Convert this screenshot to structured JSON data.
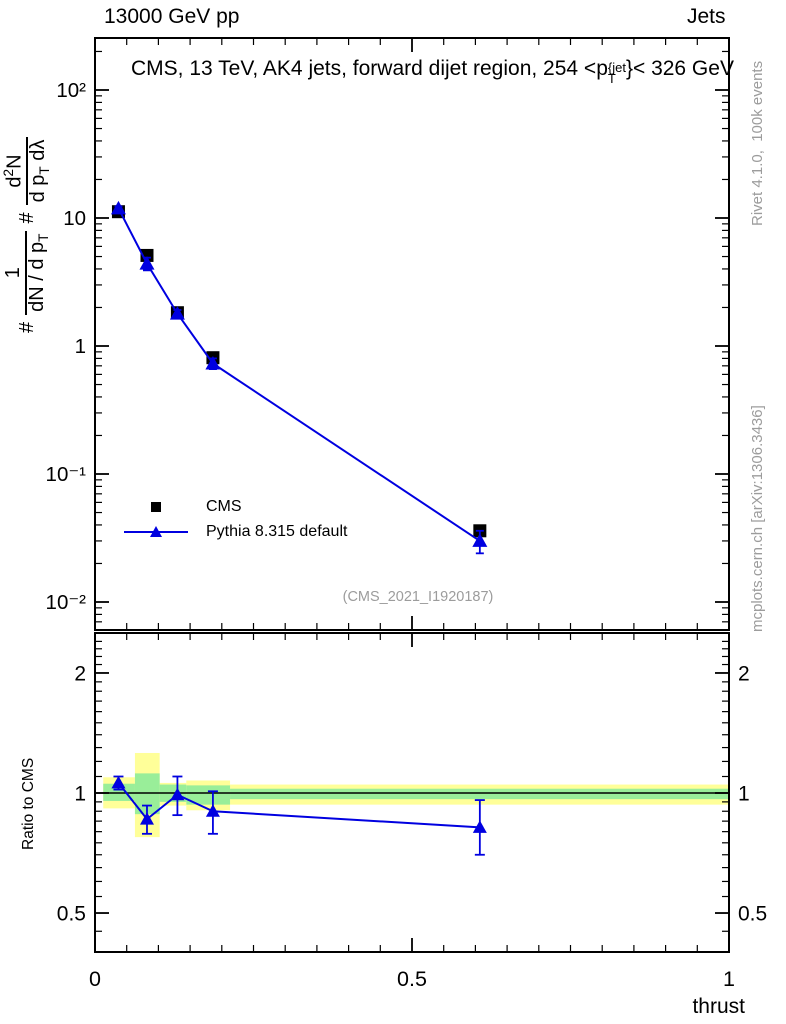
{
  "header": {
    "beam": "13000 GeV pp",
    "analysis_group": "Jets"
  },
  "title": {
    "pre": "CMS, 13 TeV, AK4 jets, forward dijet region, 254 <p",
    "sup": "{jet",
    "sub": "T",
    "post": "}< 326 GeV",
    "plain": "CMS, 13 TeV, AK4 jets, forward dijet region, 254 < p_T^{jet} < 326 GeV"
  },
  "ylabel_formula": {
    "hash1": "#",
    "frac1_num": "1",
    "frac1_den_base": "dN / d p",
    "frac1_den_sub": "T",
    "hash2": "#",
    "frac2_num_base": "d",
    "frac2_num_sup": "2",
    "frac2_num_tail": "N",
    "frac2_den_base": "d p",
    "frac2_den_sub": "T",
    "frac2_den_tail": " dλ"
  },
  "watermarks": {
    "rivet": "Rivet 4.1.0,  100k events",
    "mcplots": "mcplots.cern.ch [arXiv:1306.3436]"
  },
  "legend": {
    "entries": [
      {
        "label": "CMS",
        "marker": "black-square"
      },
      {
        "label": "Pythia 8.315 default",
        "marker": "blue-triangle-line"
      }
    ]
  },
  "ref_label": "(CMS_2021_I1920187)",
  "colors": {
    "cms_black": "#000000",
    "pythia_blue": "#0000e0",
    "band_yellow": "#ffff99",
    "band_green": "#99ee99",
    "watermark_gray": "#9c9c9c"
  },
  "chart_data": {
    "type": "line",
    "title": "CMS, 13 TeV, AK4 jets, forward dijet region, 254 < p_T^{jet} < 326 GeV",
    "xlabel": "thrust",
    "x_range": [
      0,
      1
    ],
    "x_ticks": [
      {
        "v": 0,
        "label": "0"
      },
      {
        "v": 0.5,
        "label": "0.5"
      },
      {
        "v": 1,
        "label": "1"
      }
    ],
    "x_minor_step": 0.05,
    "main_panel": {
      "y_scale": "log",
      "y_range": [
        0.006,
        255
      ],
      "y_ticks": [
        {
          "v": 100,
          "label": "10²"
        },
        {
          "v": 10,
          "label": "10"
        },
        {
          "v": 1,
          "label": "1"
        },
        {
          "v": 0.1,
          "label": "10⁻¹"
        },
        {
          "v": 0.01,
          "label": "10⁻²"
        }
      ],
      "series": [
        {
          "name": "CMS",
          "marker": "square",
          "color": "#000000",
          "x": [
            0.037,
            0.082,
            0.13,
            0.186,
            0.607
          ],
          "y": [
            11.2,
            5.1,
            1.82,
            0.81,
            0.036
          ],
          "yerr": [
            0.35,
            0.18,
            0.06,
            0.03,
            0.002
          ]
        },
        {
          "name": "Pythia 8.315 default",
          "marker": "triangle",
          "color": "#0000e0",
          "line": true,
          "x": [
            0.037,
            0.082,
            0.13,
            0.186,
            0.607
          ],
          "y": [
            11.9,
            4.4,
            1.79,
            0.73,
            0.03
          ],
          "yerr": [
            0.4,
            0.5,
            0.12,
            0.07,
            0.006
          ]
        }
      ]
    },
    "ratio_panel": {
      "ylabel": "Ratio to CMS",
      "y_scale": "log",
      "y_range": [
        0.4,
        2.52
      ],
      "reference_line": 1,
      "y_ticks": [
        {
          "v": 2,
          "label": "2"
        },
        {
          "v": 1,
          "label": "1"
        },
        {
          "v": 0.5,
          "label": "0.5"
        }
      ],
      "bands": [
        {
          "x0": 0.013,
          "x1": 0.063,
          "yellow": [
            0.915,
            1.095
          ],
          "green": [
            0.955,
            1.055
          ]
        },
        {
          "x0": 0.063,
          "x1": 0.102,
          "yellow": [
            0.775,
            1.26
          ],
          "green": [
            0.885,
            1.12
          ]
        },
        {
          "x0": 0.102,
          "x1": 0.144,
          "yellow": [
            0.93,
            1.06
          ],
          "green": [
            0.95,
            1.05
          ]
        },
        {
          "x0": 0.144,
          "x1": 0.213,
          "yellow": [
            0.905,
            1.075
          ],
          "green": [
            0.935,
            1.045
          ]
        },
        {
          "x0": 0.213,
          "x1": 1.0,
          "yellow": [
            0.935,
            1.05
          ],
          "green": [
            0.965,
            1.025
          ]
        }
      ],
      "series": {
        "name": "Pythia 8.315 default / CMS",
        "color": "#0000e0",
        "x": [
          0.037,
          0.082,
          0.13,
          0.186,
          0.607
        ],
        "y": [
          1.06,
          0.86,
          0.99,
          0.9,
          0.82
        ],
        "yerr_lo": [
          0.04,
          0.07,
          0.11,
          0.11,
          0.12
        ],
        "yerr_hi": [
          0.04,
          0.07,
          0.11,
          0.11,
          0.14
        ]
      }
    }
  }
}
